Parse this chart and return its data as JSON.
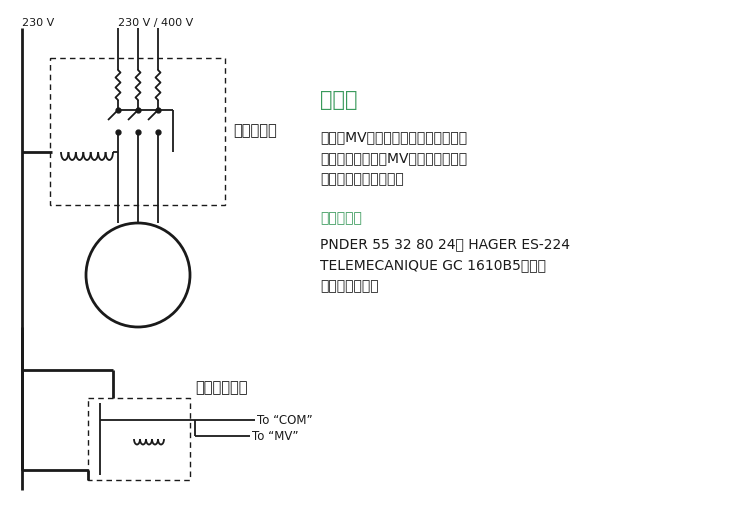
{
  "bg_color": "#ffffff",
  "text_color": "#1a1a1a",
  "green_color": "#3a9a5c",
  "label_230v": "230 V",
  "label_230v_400v": "230 V / 400 V",
  "label_power_relay": "电源继电器",
  "label_pump_relay": "泉启动继电器",
  "label_to_com": "To “COM”",
  "label_to_mv": "To “MV”",
  "title": "泉启动",
  "body1": "标记为MV的端子通过继电器主动启动",
  "body2": "泉或打开主阀门，MV端子只在其中一",
  "body3": "个站点工作是才供电。",
  "subtitle": "推荐继电器",
  "body4": "PNDER 55 32 80 24， HAGER ES-224",
  "body5": "TELEMECANIQUE GC 1610B5或与之",
  "body6": "相当的继电器。"
}
